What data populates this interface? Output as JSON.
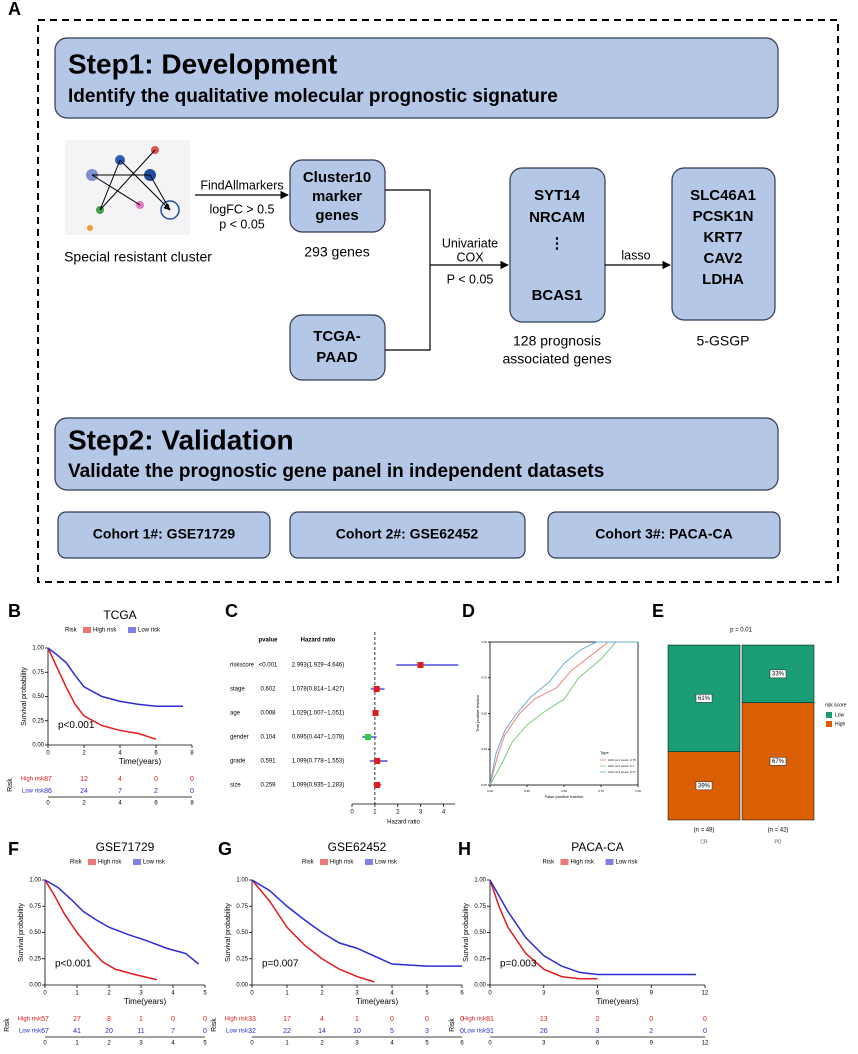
{
  "diagram": {
    "label": "A",
    "step1": {
      "title": "Step1: Development",
      "subtitle": "Identify the qualitative molecular prognostic signature"
    },
    "image_caption": "Special resistant cluster",
    "edge1": [
      "FindAllmarkers",
      "logFC > 0.5",
      "p < 0.05"
    ],
    "cluster_box": [
      "Cluster10",
      "marker",
      "genes"
    ],
    "cluster_caption": "293 genes",
    "tcga_box": [
      "TCGA-",
      "PAAD"
    ],
    "edge2": [
      "Univariate",
      "COX",
      "P < 0.05"
    ],
    "genes_box": [
      "SYT14",
      "NRCAM",
      "⋮",
      "BCAS1"
    ],
    "genes_caption": [
      "128 prognosis",
      "associated genes"
    ],
    "edge3": "lasso",
    "final_box": [
      "SLC46A1",
      "PCSK1N",
      "KRT7",
      "CAV2",
      "LDHA"
    ],
    "final_caption": "5-GSGP",
    "step2": {
      "title": "Step2: Validation",
      "subtitle": "Validate the prognostic gene panel in independent datasets"
    },
    "cohorts": [
      "Cohort 1#: GSE71729",
      "Cohort 2#: GSE62452",
      "Cohort 3#: PACA-CA"
    ]
  },
  "chart_data": [
    {
      "type": "km",
      "label": "B",
      "title": "TCGA",
      "legend_title": "Risk",
      "series": [
        {
          "name": "High risk",
          "color": "#e41a1c",
          "x": [
            0,
            0.5,
            1,
            1.5,
            2,
            3,
            4,
            5,
            6
          ],
          "values": [
            1,
            0.8,
            0.6,
            0.42,
            0.3,
            0.2,
            0.15,
            0.12,
            0.06
          ]
        },
        {
          "name": "Low risk",
          "color": "#2b2bd6",
          "x": [
            0,
            0.5,
            1,
            1.5,
            2,
            3,
            4,
            5,
            6,
            7.5
          ],
          "values": [
            1,
            0.93,
            0.85,
            0.72,
            0.6,
            0.5,
            0.45,
            0.42,
            0.4,
            0.4
          ]
        }
      ],
      "xlim": [
        0,
        8
      ],
      "xticks": [
        0,
        2,
        4,
        6,
        8
      ],
      "ylim": [
        0,
        1
      ],
      "yticks": [
        {
          "value": 0,
          "label": "0.00"
        },
        {
          "value": 0.25,
          "label": "0.25"
        },
        {
          "value": 0.5,
          "label": "0.50"
        },
        {
          "value": 0.75,
          "label": "0.75"
        },
        {
          "value": 1,
          "label": "1.00"
        }
      ],
      "xlabel": "Time(years)",
      "ylabel": "Survival probability",
      "pvalue": "p<0.001",
      "risk_table": {
        "label": "Risk",
        "counts": [
          [
            87,
            12,
            4,
            0,
            0
          ],
          [
            86,
            24,
            7,
            2,
            0
          ]
        ]
      }
    },
    {
      "type": "forest",
      "label": "C",
      "headers": [
        "pvalue",
        "Hazard ratio"
      ],
      "xlabel": "Hazard ratio",
      "xlim": [
        0,
        4.5
      ],
      "xticks": [
        0,
        1,
        2,
        3,
        4
      ],
      "reference": 1,
      "rows": [
        {
          "name": "riskscore",
          "pvalue": "<0.001",
          "hr_label": "2.993(1.929−4.646)",
          "hr": 2.993,
          "lo": 1.929,
          "hi": 4.646,
          "color": "#e41a1c"
        },
        {
          "name": "stage",
          "pvalue": "0.602",
          "hr_label": "1.078(0.814−1.427)",
          "hr": 1.078,
          "lo": 0.814,
          "hi": 1.427,
          "color": "#e41a1c"
        },
        {
          "name": "age",
          "pvalue": "0.008",
          "hr_label": "1.029(1.007−1.051)",
          "hr": 1.029,
          "lo": 1.007,
          "hi": 1.051,
          "color": "#e41a1c"
        },
        {
          "name": "gender",
          "pvalue": "0.104",
          "hr_label": "0.695(0.447−1.078)",
          "hr": 0.695,
          "lo": 0.447,
          "hi": 1.078,
          "color": "#2ecc40"
        },
        {
          "name": "grade",
          "pvalue": "0.591",
          "hr_label": "1.099(0.778−1.553)",
          "hr": 1.099,
          "lo": 0.778,
          "hi": 1.553,
          "color": "#e41a1c"
        },
        {
          "name": "size",
          "pvalue": "0.259",
          "hr_label": "1.099(0.935−1.283)",
          "hr": 1.099,
          "lo": 0.935,
          "hi": 1.283,
          "color": "#e41a1c"
        }
      ]
    },
    {
      "type": "roc",
      "label": "D",
      "legend_title": "Type",
      "xlabel": "False positive fraction",
      "ylabel": "True positive fraction",
      "xlim": [
        0,
        1
      ],
      "ylim": [
        0,
        1
      ],
      "xticks": [
        {
          "value": 0,
          "label": "0.00"
        },
        {
          "value": 0.25,
          "label": "0.25"
        },
        {
          "value": 0.5,
          "label": "0.50"
        },
        {
          "value": 0.75,
          "label": "0.75"
        },
        {
          "value": 1,
          "label": "1.00"
        }
      ],
      "yticks": [
        {
          "value": 0,
          "label": "0.00"
        },
        {
          "value": 0.25,
          "label": "0.25"
        },
        {
          "value": 0.5,
          "label": "0.50"
        },
        {
          "value": 0.75,
          "label": "0.75"
        },
        {
          "value": 1,
          "label": "1.00"
        }
      ],
      "series": [
        {
          "name": "AUC at 1 years: 0.75",
          "color": "#f08080",
          "x": [
            0,
            0.05,
            0.1,
            0.2,
            0.3,
            0.45,
            0.55,
            0.7,
            0.8,
            1
          ],
          "values": [
            0,
            0.2,
            0.35,
            0.5,
            0.6,
            0.68,
            0.8,
            0.92,
            1,
            1
          ]
        },
        {
          "name": "AUC at 2 years: 0.7",
          "color": "#7fc97f",
          "x": [
            0,
            0.08,
            0.15,
            0.25,
            0.35,
            0.5,
            0.6,
            0.75,
            0.85,
            1
          ],
          "values": [
            0,
            0.15,
            0.3,
            0.42,
            0.5,
            0.6,
            0.75,
            0.88,
            1,
            1
          ]
        },
        {
          "name": "AUC at 3 years: 0.77",
          "color": "#6baed6",
          "x": [
            0,
            0.04,
            0.1,
            0.18,
            0.28,
            0.4,
            0.5,
            0.62,
            0.72,
            1
          ],
          "values": [
            0,
            0.22,
            0.38,
            0.5,
            0.62,
            0.72,
            0.85,
            0.95,
            1,
            1
          ]
        }
      ]
    },
    {
      "type": "mosaic",
      "label": "E",
      "pvalue": "p = 0.01",
      "categories": [
        "CR",
        "PD"
      ],
      "n_labels": [
        "(n = 48)",
        "(n = 42)"
      ],
      "legend_title": "risk score",
      "ylim": [
        0,
        100
      ],
      "series": [
        {
          "name": "Low",
          "color": "#1b9e77",
          "values": [
            61,
            33
          ],
          "value_labels": [
            "61%",
            "33%"
          ]
        },
        {
          "name": "High",
          "color": "#d95f02",
          "values": [
            39,
            67
          ],
          "value_labels": [
            "39%",
            "67%"
          ]
        }
      ]
    },
    {
      "type": "km",
      "label": "F",
      "title": "GSE71729",
      "legend_title": "Risk",
      "series": [
        {
          "name": "High risk",
          "color": "#e41a1c",
          "x": [
            0,
            0.3,
            0.6,
            1,
            1.4,
            1.8,
            2.2,
            2.8,
            3.5
          ],
          "values": [
            1,
            0.85,
            0.68,
            0.5,
            0.35,
            0.22,
            0.15,
            0.1,
            0.05
          ]
        },
        {
          "name": "Low risk",
          "color": "#2b2bd6",
          "x": [
            0,
            0.4,
            0.8,
            1.2,
            1.6,
            2,
            2.6,
            3.2,
            3.8,
            4.4,
            4.8
          ],
          "values": [
            1,
            0.93,
            0.82,
            0.7,
            0.62,
            0.55,
            0.48,
            0.42,
            0.35,
            0.3,
            0.2
          ]
        }
      ],
      "xlim": [
        0,
        5
      ],
      "xticks": [
        0,
        1,
        2,
        3,
        4,
        5
      ],
      "ylim": [
        0,
        1
      ],
      "yticks": [
        {
          "value": 0,
          "label": "0.00"
        },
        {
          "value": 0.25,
          "label": "0.25"
        },
        {
          "value": 0.5,
          "label": "0.50"
        },
        {
          "value": 0.75,
          "label": "0.75"
        },
        {
          "value": 1,
          "label": "1.00"
        }
      ],
      "xlabel": "Time(years)",
      "ylabel": "Survival probability",
      "pvalue": "p<0.001",
      "risk_table": {
        "label": "Risk",
        "counts": [
          [
            57,
            27,
            8,
            1,
            0,
            0
          ],
          [
            67,
            41,
            20,
            11,
            7,
            0
          ]
        ]
      }
    },
    {
      "type": "km",
      "label": "G",
      "title": "GSE62452",
      "legend_title": "Risk",
      "series": [
        {
          "name": "High risk",
          "color": "#e41a1c",
          "x": [
            0,
            0.5,
            1,
            1.5,
            2,
            2.5,
            3,
            3.5
          ],
          "values": [
            1,
            0.8,
            0.55,
            0.38,
            0.25,
            0.15,
            0.08,
            0.03
          ]
        },
        {
          "name": "Low risk",
          "color": "#2b2bd6",
          "x": [
            0,
            0.5,
            1,
            1.5,
            2,
            2.5,
            3,
            4,
            5,
            6
          ],
          "values": [
            1,
            0.9,
            0.75,
            0.62,
            0.5,
            0.4,
            0.35,
            0.2,
            0.18,
            0.18
          ]
        }
      ],
      "xlim": [
        0,
        6
      ],
      "xticks": [
        0,
        1,
        2,
        3,
        4,
        5,
        6
      ],
      "ylim": [
        0,
        1
      ],
      "yticks": [
        {
          "value": 0,
          "label": "0.00"
        },
        {
          "value": 0.25,
          "label": "0.25"
        },
        {
          "value": 0.5,
          "label": "0.50"
        },
        {
          "value": 0.75,
          "label": "0.75"
        },
        {
          "value": 1,
          "label": "1.00"
        }
      ],
      "xlabel": "Time(years)",
      "ylabel": "Survival probability",
      "pvalue": "p=0.007",
      "risk_table": {
        "label": "Risk",
        "counts": [
          [
            33,
            17,
            4,
            1,
            0,
            0,
            0
          ],
          [
            32,
            22,
            14,
            10,
            5,
            3,
            0
          ]
        ]
      }
    },
    {
      "type": "km",
      "label": "H",
      "title": "PACA-CA",
      "legend_title": "Risk",
      "series": [
        {
          "name": "High risk",
          "color": "#e41a1c",
          "x": [
            0,
            0.5,
            1,
            2,
            3,
            4,
            5,
            6
          ],
          "values": [
            1,
            0.75,
            0.55,
            0.3,
            0.15,
            0.08,
            0.06,
            0.06
          ]
        },
        {
          "name": "Low risk",
          "color": "#2b2bd6",
          "x": [
            0,
            0.5,
            1,
            2,
            3,
            4,
            5,
            6,
            9,
            11.5
          ],
          "values": [
            1,
            0.85,
            0.7,
            0.45,
            0.28,
            0.18,
            0.12,
            0.1,
            0.1,
            0.1
          ]
        }
      ],
      "xlim": [
        0,
        12
      ],
      "xticks": [
        0,
        3,
        6,
        9,
        12
      ],
      "ylim": [
        0,
        1
      ],
      "yticks": [
        {
          "value": 0,
          "label": "0.00"
        },
        {
          "value": 0.25,
          "label": "0.25"
        },
        {
          "value": 0.5,
          "label": "0.50"
        },
        {
          "value": 0.75,
          "label": "0.75"
        },
        {
          "value": 1,
          "label": "1.00"
        }
      ],
      "xlabel": "Time(years)",
      "ylabel": "Survival probability",
      "pvalue": "p=0.003",
      "risk_table": {
        "label": "Risk",
        "counts": [
          [
            81,
            13,
            2,
            0,
            0
          ],
          [
            91,
            26,
            3,
            2,
            0
          ]
        ]
      }
    }
  ]
}
